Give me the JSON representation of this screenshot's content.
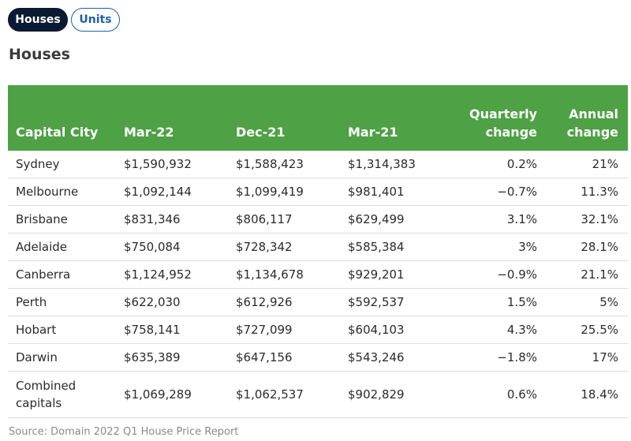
{
  "toggle": {
    "houses_label": "Houses",
    "units_label": "Units"
  },
  "heading": "Houses",
  "table": {
    "headers": {
      "city": "Capital City",
      "mar22": "Mar-22",
      "dec21": "Dec-21",
      "mar21": "Mar-21",
      "quarterly": "Quarterly change",
      "annual": "Annual change"
    },
    "rows": [
      {
        "city": "Sydney",
        "mar22": "$1,590,932",
        "dec21": "$1,588,423",
        "mar21": "$1,314,383",
        "quarterly": "0.2%",
        "annual": "21%"
      },
      {
        "city": "Melbourne",
        "mar22": "$1,092,144",
        "dec21": "$1,099,419",
        "mar21": "$981,401",
        "quarterly": "−0.7%",
        "annual": "11.3%"
      },
      {
        "city": "Brisbane",
        "mar22": "$831,346",
        "dec21": "$806,117",
        "mar21": "$629,499",
        "quarterly": "3.1%",
        "annual": "32.1%"
      },
      {
        "city": "Adelaide",
        "mar22": "$750,084",
        "dec21": "$728,342",
        "mar21": "$585,384",
        "quarterly": "3%",
        "annual": "28.1%"
      },
      {
        "city": "Canberra",
        "mar22": "$1,124,952",
        "dec21": "$1,134,678",
        "mar21": "$929,201",
        "quarterly": "−0.9%",
        "annual": "21.1%"
      },
      {
        "city": "Perth",
        "mar22": "$622,030",
        "dec21": "$612,926",
        "mar21": "$592,537",
        "quarterly": "1.5%",
        "annual": "5%"
      },
      {
        "city": "Hobart",
        "mar22": "$758,141",
        "dec21": "$727,099",
        "mar21": "$604,103",
        "quarterly": "4.3%",
        "annual": "25.5%"
      },
      {
        "city": "Darwin",
        "mar22": "$635,389",
        "dec21": "$647,156",
        "mar21": "$543,246",
        "quarterly": "−1.8%",
        "annual": "17%"
      },
      {
        "city": "Combined capitals",
        "mar22": "$1,069,289",
        "dec21": "$1,062,537",
        "mar21": "$902,829",
        "quarterly": "0.6%",
        "annual": "18.4%"
      }
    ]
  },
  "source": "Source: Domain 2022 Q1 House Price Report",
  "colors": {
    "header_green": "#4ea144",
    "active_pill": "#0b1a33",
    "link_blue": "#1d5fa8"
  }
}
